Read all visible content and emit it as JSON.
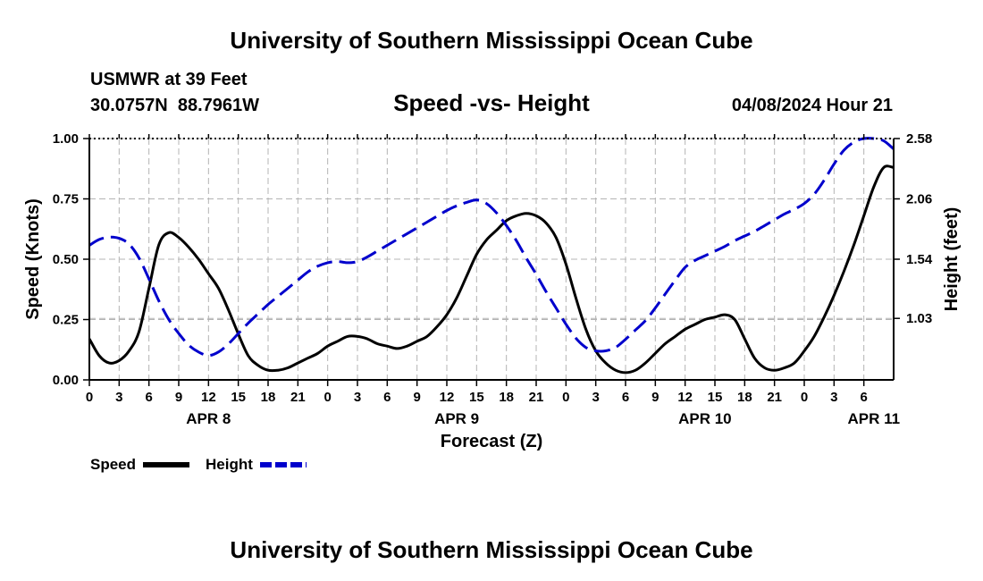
{
  "page_title": "University of Southern Mississippi Ocean Cube",
  "footer_title": "University of Southern Mississippi Ocean Cube",
  "station": {
    "name": "USMWR at 39 Feet",
    "coords": "30.0757N  88.7961W",
    "timestamp": "04/08/2024 Hour 21"
  },
  "chart_data": {
    "type": "line",
    "title": "Speed -vs- Height",
    "xlabel": "Forecast (Z)",
    "ylabel": "Speed (Knots)",
    "y2label": "Height (feet)",
    "x_hours_range": [
      0,
      81
    ],
    "ylim": [
      0,
      1
    ],
    "y2lim": [
      0.5,
      2.58
    ],
    "grid": true,
    "x_ticks": [
      "0",
      "3",
      "6",
      "9",
      "12",
      "15",
      "18",
      "21",
      "0",
      "3",
      "6",
      "9",
      "12",
      "15",
      "18",
      "21",
      "0",
      "3",
      "6",
      "9",
      "12",
      "15",
      "18",
      "21",
      "0",
      "3",
      "6"
    ],
    "day_labels": [
      {
        "label": "APR 8",
        "hour": 12
      },
      {
        "label": "APR 9",
        "hour": 37
      },
      {
        "label": "APR 10",
        "hour": 62
      },
      {
        "label": "APR 11",
        "hour": 79
      }
    ],
    "y_ticks": [
      "0.00",
      "0.25",
      "0.50",
      "0.75",
      "1.00"
    ],
    "y_tick_values": [
      0,
      0.25,
      0.5,
      0.75,
      1.0
    ],
    "y2_ticks": [
      "1.03",
      "1.54",
      "2.06",
      "2.58"
    ],
    "y2_tick_values": [
      1.03,
      1.54,
      2.06,
      2.58
    ],
    "series": [
      {
        "name": "Speed",
        "axis": "left",
        "color": "#000000",
        "dashed": false,
        "hours": [
          0,
          1,
          2,
          3,
          4,
          5,
          6,
          7,
          8,
          9,
          10,
          11,
          12,
          13,
          14,
          15,
          16,
          17,
          18,
          19,
          20,
          21,
          22,
          23,
          24,
          25,
          26,
          27,
          28,
          29,
          30,
          31,
          32,
          33,
          34,
          35,
          36,
          37,
          38,
          39,
          40,
          41,
          42,
          43,
          44,
          45,
          46,
          47,
          48,
          49,
          50,
          51,
          52,
          53,
          54,
          55,
          56,
          57,
          58,
          59,
          60,
          61,
          62,
          63,
          64,
          65,
          66,
          67,
          68,
          69,
          70,
          71,
          72,
          73,
          74,
          75,
          76,
          77,
          78,
          79,
          80,
          81
        ],
        "values": [
          0.17,
          0.1,
          0.07,
          0.08,
          0.12,
          0.2,
          0.38,
          0.56,
          0.61,
          0.59,
          0.55,
          0.5,
          0.44,
          0.38,
          0.29,
          0.19,
          0.1,
          0.06,
          0.04,
          0.04,
          0.05,
          0.07,
          0.09,
          0.11,
          0.14,
          0.16,
          0.18,
          0.18,
          0.17,
          0.15,
          0.14,
          0.13,
          0.14,
          0.16,
          0.18,
          0.22,
          0.27,
          0.34,
          0.43,
          0.52,
          0.58,
          0.62,
          0.66,
          0.68,
          0.69,
          0.68,
          0.65,
          0.59,
          0.48,
          0.34,
          0.21,
          0.12,
          0.07,
          0.04,
          0.03,
          0.04,
          0.07,
          0.11,
          0.15,
          0.18,
          0.21,
          0.23,
          0.25,
          0.26,
          0.27,
          0.25,
          0.17,
          0.09,
          0.05,
          0.04,
          0.05,
          0.07,
          0.12,
          0.18,
          0.26,
          0.35,
          0.45,
          0.56,
          0.68,
          0.8,
          0.88,
          0.88
        ]
      },
      {
        "name": "Height",
        "axis": "right",
        "color": "#0000cc",
        "dashed": true,
        "hours": [
          0,
          1,
          2,
          3,
          4,
          5,
          6,
          7,
          8,
          9,
          10,
          11,
          12,
          13,
          14,
          15,
          16,
          17,
          18,
          19,
          20,
          21,
          22,
          23,
          24,
          25,
          26,
          27,
          28,
          29,
          30,
          31,
          32,
          33,
          34,
          35,
          36,
          37,
          38,
          39,
          40,
          41,
          42,
          43,
          44,
          45,
          46,
          47,
          48,
          49,
          50,
          51,
          52,
          53,
          54,
          55,
          56,
          57,
          58,
          59,
          60,
          61,
          62,
          63,
          64,
          65,
          66,
          67,
          68,
          69,
          70,
          71,
          72,
          73,
          74,
          75,
          76,
          77,
          78,
          79,
          80,
          81
        ],
        "values": [
          1.66,
          1.71,
          1.73,
          1.72,
          1.67,
          1.55,
          1.37,
          1.18,
          1.02,
          0.9,
          0.8,
          0.74,
          0.71,
          0.74,
          0.81,
          0.9,
          0.99,
          1.07,
          1.15,
          1.22,
          1.29,
          1.36,
          1.43,
          1.48,
          1.51,
          1.52,
          1.51,
          1.52,
          1.56,
          1.61,
          1.66,
          1.71,
          1.76,
          1.81,
          1.86,
          1.91,
          1.96,
          2.0,
          2.03,
          2.05,
          2.02,
          1.94,
          1.83,
          1.7,
          1.55,
          1.41,
          1.26,
          1.12,
          0.98,
          0.86,
          0.78,
          0.75,
          0.75,
          0.78,
          0.85,
          0.93,
          1.01,
          1.12,
          1.24,
          1.36,
          1.47,
          1.53,
          1.57,
          1.61,
          1.65,
          1.7,
          1.74,
          1.78,
          1.83,
          1.88,
          1.93,
          1.97,
          2.02,
          2.1,
          2.22,
          2.36,
          2.48,
          2.55,
          2.58,
          2.58,
          2.56,
          2.49
        ]
      }
    ],
    "legend": [
      {
        "label": "Speed",
        "color": "#000000",
        "dashed": false
      },
      {
        "label": "Height",
        "color": "#0000cc",
        "dashed": true
      }
    ]
  }
}
